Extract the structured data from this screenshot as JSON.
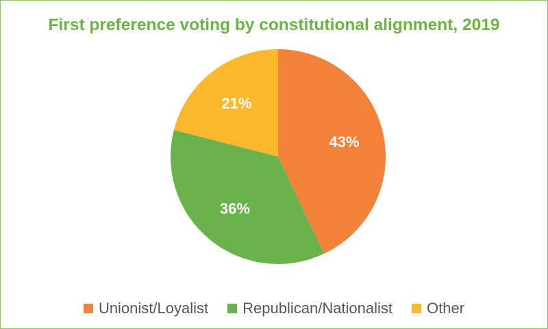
{
  "chart_data": {
    "type": "pie",
    "title": "First preference voting by constitutional alignment, 2019",
    "categories": [
      "Unionist/Loyalist",
      "Republican/Nationalist",
      "Other"
    ],
    "values": [
      43,
      36,
      21
    ],
    "data_labels": [
      "43%",
      "36%",
      "21%"
    ],
    "colors": [
      "#f0823a",
      "#6ab34c",
      "#fbb82c"
    ],
    "legend_position": "bottom",
    "start_angle": "12 o'clock",
    "direction": "clockwise"
  },
  "colors": {
    "title": "#6ab344",
    "border": "#8ec16b",
    "legend_text": "#555555",
    "slice_label": "#ffffff"
  }
}
